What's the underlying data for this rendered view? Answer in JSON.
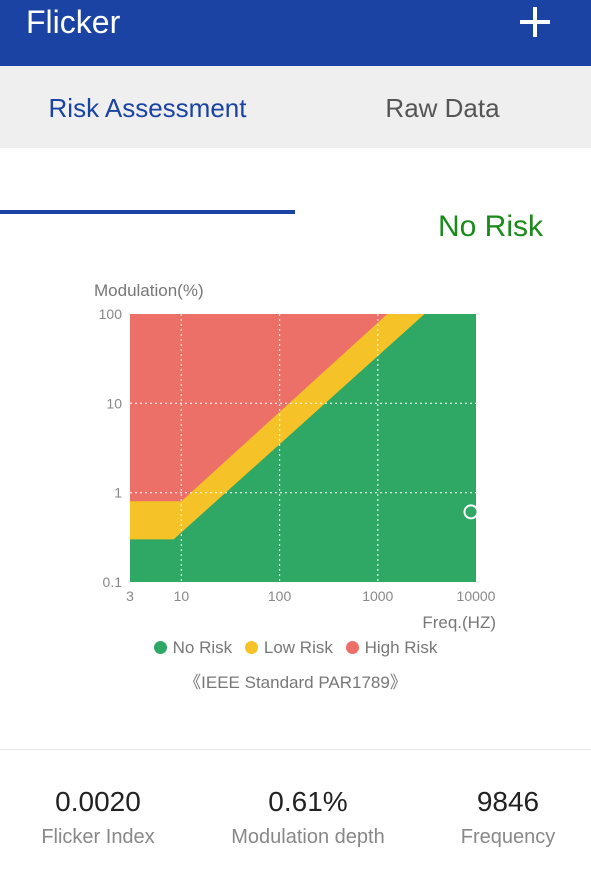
{
  "app": {
    "title": "Flicker",
    "add_icon": "plus-icon",
    "primary_color": "#1a43a3"
  },
  "tabs": [
    {
      "label": "Risk Assessment",
      "active": true
    },
    {
      "label": "Raw Data",
      "active": false
    }
  ],
  "result": {
    "label": "No Risk",
    "color": "#1a8a1a"
  },
  "chart_data": {
    "type": "area",
    "ylabel": "Modulation(%)",
    "xlabel": "Freq.(HZ)",
    "x_scale": "log",
    "y_scale": "log",
    "xlim": [
      3,
      10000
    ],
    "ylim": [
      0.1,
      100
    ],
    "x_ticks": [
      3,
      10,
      100,
      1000,
      10000
    ],
    "x_tick_labels": [
      "3",
      "10",
      "100",
      "1000",
      "10000"
    ],
    "y_ticks": [
      0.1,
      1,
      10,
      100
    ],
    "y_tick_labels": [
      "0.1",
      "1",
      "10",
      "100"
    ],
    "grid": true,
    "regions": [
      {
        "name": "No Risk",
        "color": "#2fa765",
        "boundary": [
          [
            3,
            0.3
          ],
          [
            8.33,
            0.3
          ],
          [
            3000,
            100
          ]
        ]
      },
      {
        "name": "Low Risk",
        "color": "#f5c227",
        "boundary": [
          [
            3,
            0.8
          ],
          [
            10,
            0.8
          ],
          [
            1250,
            100
          ]
        ]
      },
      {
        "name": "High Risk",
        "color": "#ec6f68"
      }
    ],
    "marker": {
      "x": 9846,
      "y": 0.61
    },
    "legend_position": "bottom",
    "legend": [
      {
        "label": "No Risk",
        "color": "#2fa765"
      },
      {
        "label": "Low Risk",
        "color": "#f5c227"
      },
      {
        "label": "High Risk",
        "color": "#ec6f68"
      }
    ],
    "annotation": "《IEEE Standard PAR1789》"
  },
  "stats": [
    {
      "value": "0.0020",
      "label": "Flicker Index"
    },
    {
      "value": "0.61%",
      "label": "Modulation depth"
    },
    {
      "value": "9846",
      "label": "Frequency"
    }
  ]
}
